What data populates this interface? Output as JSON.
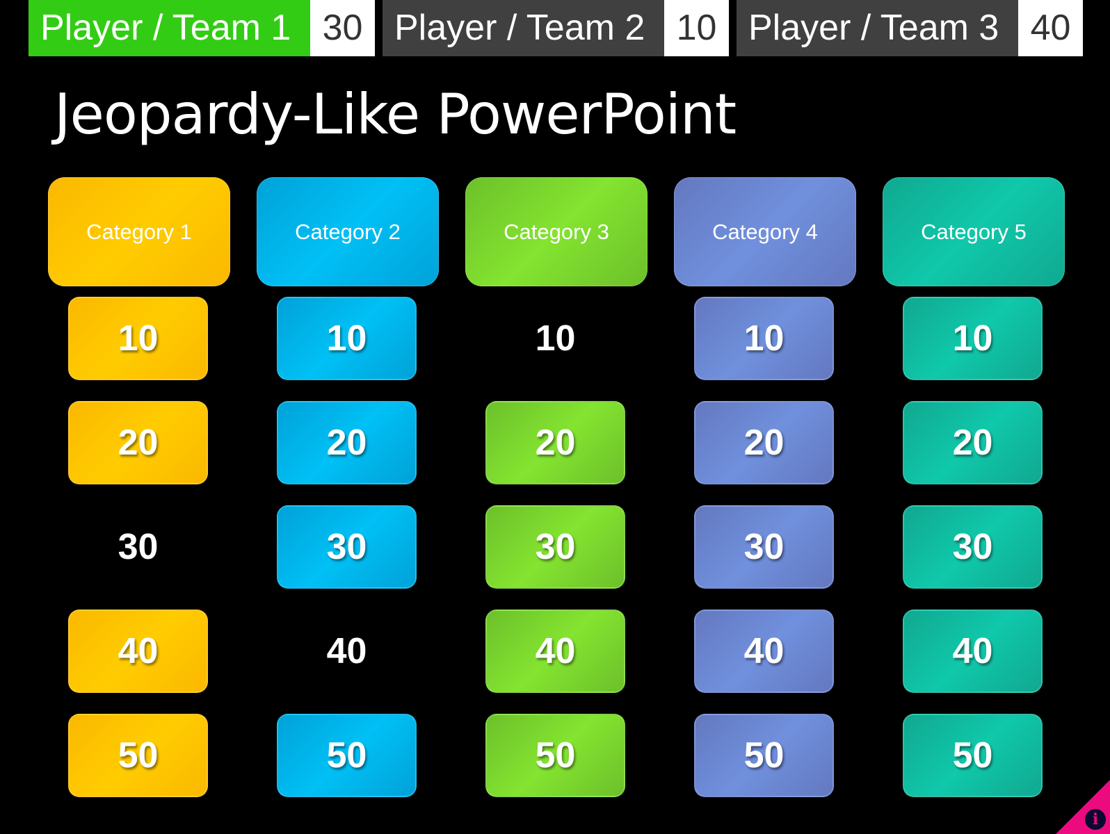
{
  "teams": [
    {
      "name": "Player / Team 1",
      "score": "30",
      "active": true
    },
    {
      "name": "Player / Team 2",
      "score": "10",
      "active": false
    },
    {
      "name": "Player / Team 3",
      "score": "40",
      "active": false
    }
  ],
  "title": "Jeopardy-Like PowerPoint",
  "categories": [
    {
      "label": "Category 1",
      "color": "#fbb800",
      "color2": "#ffcc00",
      "used": [
        "30"
      ]
    },
    {
      "label": "Category 2",
      "color": "#00a2d8",
      "color2": "#00c0f5",
      "used": [
        "40"
      ]
    },
    {
      "label": "Category 3",
      "color": "#6cc02a",
      "color2": "#84e430",
      "used": [
        "10"
      ]
    },
    {
      "label": "Category 4",
      "color": "#6478c0",
      "color2": "#7090dd",
      "used": []
    },
    {
      "label": "Category 5",
      "color": "#10a890",
      "color2": "#10c8aa",
      "used": []
    }
  ],
  "values": [
    "10",
    "20",
    "30",
    "40",
    "50"
  ],
  "info_icon": "info-icon",
  "info_color": "#ec0a7f"
}
